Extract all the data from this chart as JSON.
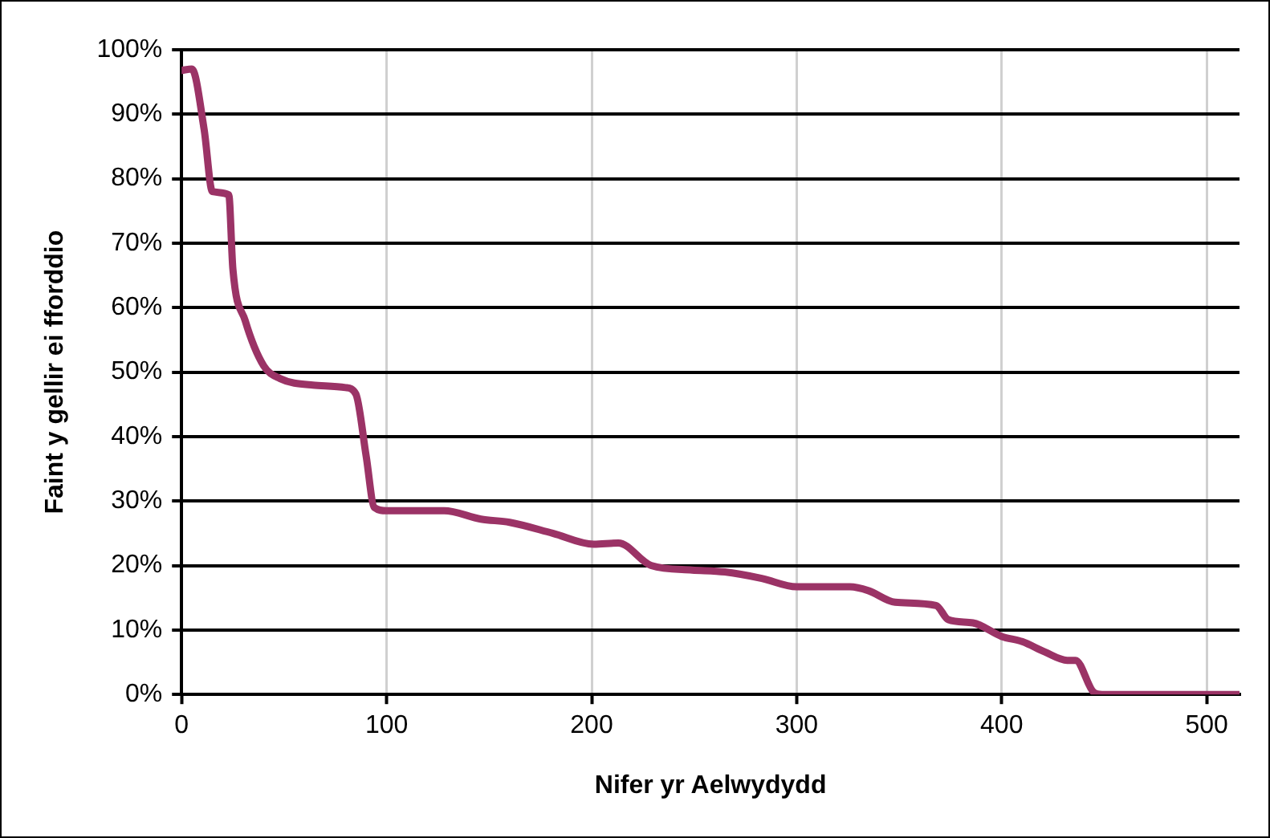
{
  "chart_data": {
    "type": "line",
    "xlabel": "Nifer yr Aelwydydd",
    "ylabel": "Faint y gellir ei fforddio",
    "x": [
      0,
      5,
      11,
      15,
      23,
      25,
      31,
      40,
      48,
      64,
      80,
      85,
      90,
      94,
      100,
      128,
      146,
      160,
      181,
      201,
      213,
      229,
      249,
      265,
      283,
      300,
      326,
      335,
      348,
      368,
      374,
      386,
      400,
      410,
      421,
      432,
      436,
      445,
      449,
      516
    ],
    "series": [
      {
        "color": "#9b3366",
        "values": [
          96.8,
          97,
          87.6,
          78,
          77.5,
          66,
          58,
          51,
          49,
          48,
          47.6,
          46.6,
          37,
          29,
          28.5,
          28.5,
          27.2,
          26.7,
          25,
          23.3,
          23.5,
          20,
          19.3,
          19,
          18,
          16.7,
          16.7,
          16.1,
          14.3,
          13.8,
          11.6,
          11.1,
          9,
          8.2,
          6.6,
          5.3,
          5.3,
          0.3,
          0,
          0
        ]
      }
    ],
    "xlim": [
      0,
      516
    ],
    "xticks": [
      0,
      100,
      200,
      300,
      400,
      500
    ],
    "ylim": [
      0,
      100
    ],
    "yticks": [
      {
        "value": 0,
        "label": "0%"
      },
      {
        "value": 10,
        "label": "10%"
      },
      {
        "value": 20,
        "label": "20%"
      },
      {
        "value": 30,
        "label": "30%"
      },
      {
        "value": 40,
        "label": "40%"
      },
      {
        "value": 50,
        "label": "50%"
      },
      {
        "value": 60,
        "label": "60%"
      },
      {
        "value": 70,
        "label": "70%"
      },
      {
        "value": 80,
        "label": "80%"
      },
      {
        "value": 90,
        "label": "90%"
      },
      {
        "value": 100,
        "label": "100%"
      }
    ],
    "grid": true,
    "marker": "none",
    "line_style": "solid",
    "legend": false
  }
}
